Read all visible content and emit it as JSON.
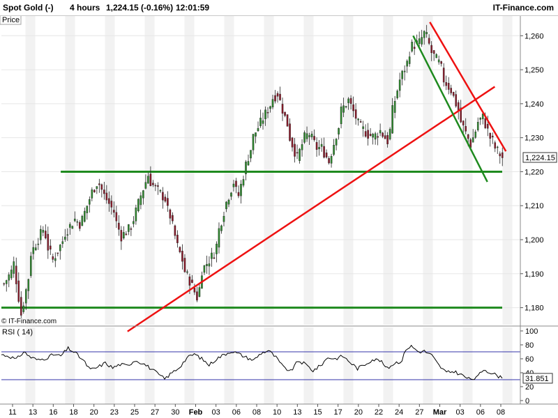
{
  "header": {
    "instrument": "Spot Gold (-)",
    "interval": "4 hours",
    "quote": "1,224.15 (-0.16%)",
    "time": "12:01:59",
    "brand": "IT-Finance.com"
  },
  "price_panel": {
    "label": "Price",
    "watermark": "© IT-Finance.com",
    "last_value_label": "1,224.15"
  },
  "rsi_panel": {
    "label": "RSI ( 14)",
    "current_value_label": "31.851"
  },
  "colors": {
    "up": "#2e8b2e",
    "down": "#8b1a2a",
    "support": "#1e8a1e",
    "trend_red": "#ee1111",
    "rsi_line": "#000000",
    "rsi_levels": "#3333aa",
    "stripe": "#f2f2f2"
  },
  "chart_data": [
    {
      "type": "candlestick",
      "title": "Spot Gold (-)",
      "ylabel": "Price",
      "ylim": [
        1175,
        1266
      ],
      "yticks": [
        "1,180",
        "1,190",
        "1,200",
        "1,210",
        "1,220",
        "1,230",
        "1,240",
        "1,250",
        "1,260"
      ],
      "ytick_values": [
        1180,
        1190,
        1200,
        1210,
        1220,
        1230,
        1240,
        1250,
        1260
      ],
      "xtick_labels": [
        "11",
        "13",
        "16",
        "18",
        "20",
        "23",
        "25",
        "27",
        "30",
        "Feb",
        "03",
        "06",
        "08",
        "10",
        "13",
        "15",
        "17",
        "20",
        "22",
        "24",
        "27",
        "Mar",
        "03",
        "06",
        "08"
      ],
      "last_value": 1224.15,
      "close_path": [
        [
          0,
          1187
        ],
        [
          2,
          1193
        ],
        [
          3,
          1178
        ],
        [
          5,
          1196
        ],
        [
          7,
          1203
        ],
        [
          9,
          1194
        ],
        [
          11,
          1201
        ],
        [
          13,
          1206
        ],
        [
          14,
          1204
        ],
        [
          16,
          1214
        ],
        [
          17,
          1218
        ],
        [
          18,
          1213
        ],
        [
          20,
          1207
        ],
        [
          21,
          1201
        ],
        [
          22,
          1203
        ],
        [
          23,
          1206
        ],
        [
          24,
          1213
        ],
        [
          25,
          1219
        ],
        [
          26,
          1216
        ],
        [
          28,
          1212
        ],
        [
          29,
          1207
        ],
        [
          30,
          1198
        ],
        [
          31,
          1192
        ],
        [
          32,
          1188
        ],
        [
          33,
          1183
        ],
        [
          34,
          1191
        ],
        [
          36,
          1196
        ],
        [
          37,
          1203
        ],
        [
          38,
          1211
        ],
        [
          39,
          1217
        ],
        [
          40,
          1213
        ],
        [
          41,
          1222
        ],
        [
          42,
          1229
        ],
        [
          43,
          1233
        ],
        [
          44,
          1237
        ],
        [
          45,
          1241
        ],
        [
          46,
          1243
        ],
        [
          47,
          1236
        ],
        [
          48,
          1230
        ],
        [
          49,
          1224
        ],
        [
          50,
          1230
        ],
        [
          51,
          1231
        ],
        [
          52,
          1227
        ],
        [
          53,
          1227
        ],
        [
          54,
          1223
        ],
        [
          55,
          1231
        ],
        [
          56,
          1238
        ],
        [
          57,
          1241
        ],
        [
          58,
          1236
        ],
        [
          59,
          1233
        ],
        [
          60,
          1231
        ],
        [
          61,
          1230
        ],
        [
          62,
          1232
        ],
        [
          63,
          1229
        ],
        [
          64,
          1238
        ],
        [
          65,
          1247
        ],
        [
          66,
          1252
        ],
        [
          67,
          1257
        ],
        [
          68,
          1258
        ],
        [
          69,
          1262
        ],
        [
          70,
          1255
        ],
        [
          71,
          1252
        ],
        [
          72,
          1247
        ],
        [
          73,
          1244
        ],
        [
          74,
          1238
        ],
        [
          75,
          1233
        ],
        [
          76,
          1228
        ],
        [
          77,
          1234
        ],
        [
          78,
          1236
        ],
        [
          79,
          1230
        ],
        [
          80,
          1227
        ],
        [
          81,
          1224.15
        ]
      ],
      "candle_count": 205,
      "horizontal_lines": [
        {
          "name": "support-upper",
          "price": 1220,
          "from_index": 32,
          "to_index": 270,
          "color": "#1e8a1e"
        },
        {
          "name": "support-lower",
          "price": 1180,
          "from_index": 0,
          "to_index": 270,
          "color": "#1e8a1e"
        }
      ],
      "trend_lines": [
        {
          "name": "rising-trend",
          "from": [
            68,
            1173
          ],
          "to": [
            266,
            1245
          ],
          "color": "#ee1111"
        },
        {
          "name": "falling-resistance-red",
          "from": [
            231,
            1264
          ],
          "to": [
            272,
            1226
          ],
          "color": "#ee1111"
        },
        {
          "name": "falling-green",
          "from": [
            222,
            1260
          ],
          "to": [
            262,
            1217
          ],
          "color": "#1e8a1e"
        }
      ]
    },
    {
      "type": "line",
      "title": "RSI ( 14)",
      "ylim": [
        -5,
        105
      ],
      "yticks": [
        "0",
        "20",
        "40",
        "60",
        "80",
        "100"
      ],
      "ytick_values": [
        0,
        20,
        40,
        60,
        80,
        100
      ],
      "reference_levels": [
        30,
        70
      ],
      "current_value": 31.851,
      "series": [
        {
          "values_path": [
            [
              0,
              66
            ],
            [
              4,
              64
            ],
            [
              8,
              59
            ],
            [
              12,
              70
            ],
            [
              16,
              62
            ],
            [
              20,
              58
            ],
            [
              24,
              61
            ],
            [
              28,
              66
            ],
            [
              32,
              64
            ],
            [
              36,
              75
            ],
            [
              40,
              68
            ],
            [
              44,
              58
            ],
            [
              48,
              44
            ],
            [
              52,
              48
            ],
            [
              56,
              54
            ],
            [
              60,
              47
            ],
            [
              64,
              52
            ],
            [
              68,
              50
            ],
            [
              72,
              58
            ],
            [
              76,
              54
            ],
            [
              80,
              47
            ],
            [
              84,
              39
            ],
            [
              88,
              31
            ],
            [
              92,
              40
            ],
            [
              96,
              48
            ],
            [
              100,
              61
            ],
            [
              104,
              67
            ],
            [
              108,
              60
            ],
            [
              112,
              51
            ],
            [
              116,
              60
            ],
            [
              120,
              66
            ],
            [
              124,
              71
            ],
            [
              128,
              67
            ],
            [
              132,
              62
            ],
            [
              136,
              58
            ],
            [
              140,
              68
            ],
            [
              144,
              72
            ],
            [
              148,
              62
            ],
            [
              152,
              48
            ],
            [
              156,
              42
            ],
            [
              160,
              57
            ],
            [
              164,
              52
            ],
            [
              168,
              43
            ],
            [
              172,
              50
            ],
            [
              176,
              62
            ],
            [
              180,
              60
            ],
            [
              184,
              64
            ],
            [
              188,
              55
            ],
            [
              192,
              46
            ],
            [
              196,
              52
            ],
            [
              200,
              59
            ],
            [
              204,
              58
            ],
            [
              208,
              46
            ],
            [
              212,
              54
            ],
            [
              216,
              57
            ],
            [
              218,
              74
            ],
            [
              221,
              78
            ],
            [
              225,
              70
            ],
            [
              228,
              71
            ],
            [
              232,
              65
            ],
            [
              236,
              50
            ],
            [
              240,
              40
            ],
            [
              244,
              42
            ],
            [
              248,
              37
            ],
            [
              252,
              31
            ],
            [
              256,
              32
            ],
            [
              260,
              45
            ],
            [
              264,
              40
            ],
            [
              268,
              35
            ],
            [
              270,
              31.851
            ]
          ]
        }
      ]
    }
  ]
}
